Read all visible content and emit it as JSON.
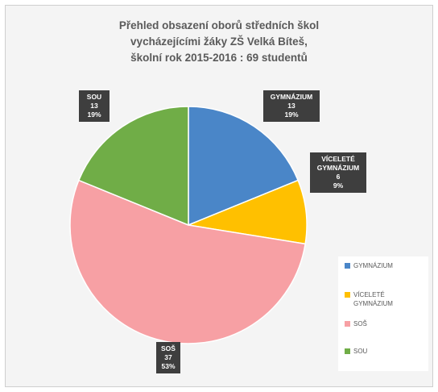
{
  "chart_data": {
    "type": "pie",
    "title_lines": [
      "Přehled obsazení oborů středních škol",
      "vycházejícími žáky ZŠ Velká Bíteš,",
      "školní rok 2015-2016 :     69 studentů"
    ],
    "slices": [
      {
        "name": "GYMNÁZIUM",
        "label_lines": [
          "GYMNÁZIUM"
        ],
        "value": 13,
        "percent": "19%",
        "color": "#4a86c8"
      },
      {
        "name": "VÍCELETÉ GYMNÁZIUM",
        "label_lines": [
          "VÍCELETÉ",
          "GYMNÁZIUM"
        ],
        "value": 6,
        "percent": "9%",
        "color": "#ffc000"
      },
      {
        "name": "SOŠ",
        "label_lines": [
          "SOŠ"
        ],
        "value": 37,
        "percent": "53%",
        "color": "#f7a0a4"
      },
      {
        "name": "SOU",
        "label_lines": [
          "SOU"
        ],
        "value": 13,
        "percent": "19%",
        "color": "#70ad47"
      }
    ],
    "legend": [
      {
        "text": "GYMNÁZIUM",
        "color": "#4a86c8"
      },
      {
        "text": "VÍCELETÉ GYMNÁZIUM",
        "color": "#ffc000"
      },
      {
        "text": "SOŠ",
        "color": "#f7a0a4"
      },
      {
        "text": "SOU",
        "color": "#70ad47"
      }
    ],
    "legend_position": "right"
  }
}
